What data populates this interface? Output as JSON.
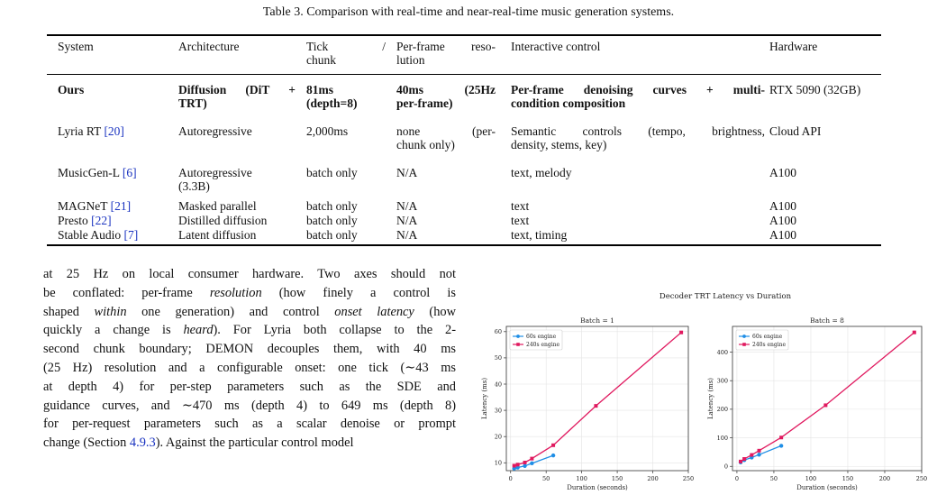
{
  "table": {
    "caption": "Table 3. Comparison with real-time and near-real-time music generation systems.",
    "headers": [
      [
        "System"
      ],
      [
        "Architecture"
      ],
      [
        "Tick           /",
        "chunk"
      ],
      [
        "Per-frame reso-",
        "lution"
      ],
      [
        "Interactive control"
      ],
      [
        "Hardware"
      ]
    ],
    "rows": [
      {
        "system": "Ours",
        "system_cite": "",
        "architecture": [
          "Diffusion (DiT +",
          "TRT)"
        ],
        "tick": [
          "81ms",
          "(depth=8)"
        ],
        "resolution": [
          "40ms     (25Hz",
          "per-frame)"
        ],
        "control": [
          "Per-frame denoising curves + multi-",
          "condition composition"
        ],
        "hardware": "RTX 5090 (32GB)"
      },
      {
        "system": "Lyria RT ",
        "system_cite": "[20]",
        "architecture": [
          "Autoregressive"
        ],
        "tick": [
          "2,000ms"
        ],
        "resolution": [
          "none        (per-",
          "chunk only)"
        ],
        "control": [
          "Semantic controls (tempo, brightness,",
          "density, stems, key)"
        ],
        "hardware": "Cloud API"
      },
      {
        "system": "MusicGen-L ",
        "system_cite": "[6]",
        "architecture": [
          "Autoregressive",
          "(3.3B)"
        ],
        "tick": [
          "batch only"
        ],
        "resolution": [
          "N/A"
        ],
        "control": [
          "text, melody"
        ],
        "hardware": "A100"
      },
      {
        "system": "MAGNeT ",
        "system_cite": "[21]",
        "architecture": [
          "Masked parallel"
        ],
        "tick": [
          "batch only"
        ],
        "resolution": [
          "N/A"
        ],
        "control": [
          "text"
        ],
        "hardware": "A100"
      },
      {
        "system": "Presto ",
        "system_cite": "[22]",
        "architecture": [
          "Distilled diffusion"
        ],
        "tick": [
          "batch only"
        ],
        "resolution": [
          "N/A"
        ],
        "control": [
          "text"
        ],
        "hardware": "A100"
      },
      {
        "system": "Stable Audio ",
        "system_cite": "[7]",
        "architecture": [
          "Latent diffusion"
        ],
        "tick": [
          "batch only"
        ],
        "resolution": [
          "N/A"
        ],
        "control": [
          "text, timing"
        ],
        "hardware": "A100"
      }
    ]
  },
  "body": {
    "lines": [
      [
        {
          "t": "at 25 Hz on local consumer hardware. Two axes should not"
        }
      ],
      [
        {
          "t": "be conflated: per-frame "
        },
        {
          "t": "resolution",
          "i": true
        },
        {
          "t": " (how finely a control is"
        }
      ],
      [
        {
          "t": "shaped "
        },
        {
          "t": "within",
          "i": true
        },
        {
          "t": " one generation) and control "
        },
        {
          "t": "onset latency",
          "i": true
        },
        {
          "t": " (how"
        }
      ],
      [
        {
          "t": "quickly a change is "
        },
        {
          "t": "heard",
          "i": true
        },
        {
          "t": "). For Lyria both collapse to the 2-"
        }
      ],
      [
        {
          "t": "second chunk boundary; DEMON decouples them, with 40 ms"
        }
      ],
      [
        {
          "t": "(25 Hz) resolution and a configurable onset: one tick (∼43 ms"
        }
      ],
      [
        {
          "t": "at depth 4) for per-step parameters such as the SDE and"
        }
      ],
      [
        {
          "t": "guidance curves, and ∼470 ms (depth 4) to 649 ms (depth 8)"
        }
      ],
      [
        {
          "t": "for per-request parameters such as a scalar denoise or prompt"
        }
      ],
      [
        {
          "t": "change (Section "
        },
        {
          "t": "4.9.3",
          "c": true
        },
        {
          "t": "). Against the particular control model"
        }
      ]
    ]
  },
  "figure": {
    "title": "Decoder TRT Latency vs Duration"
  },
  "chart_data": [
    {
      "type": "line",
      "title": "Batch = 1",
      "xlabel": "Duration (seconds)",
      "ylabel": "Latency (ms)",
      "xlim": [
        -6,
        250
      ],
      "ylim": [
        7,
        62
      ],
      "xticks": [
        0,
        50,
        100,
        150,
        200,
        250
      ],
      "yticks": [
        10,
        20,
        30,
        40,
        50,
        60
      ],
      "grid": true,
      "legend": "top-left",
      "series": [
        {
          "name": "60s engine",
          "color": "#1f8ee6",
          "marker": "circle",
          "x": [
            5,
            10,
            20,
            30,
            60
          ],
          "y": [
            7.8,
            8.2,
            8.8,
            9.8,
            12.8
          ]
        },
        {
          "name": "240s engine",
          "color": "#e0195f",
          "marker": "square",
          "x": [
            5,
            10,
            20,
            30,
            60,
            120,
            240
          ],
          "y": [
            8.9,
            9.3,
            10.1,
            11.6,
            16.7,
            31.7,
            59.7
          ]
        }
      ]
    },
    {
      "type": "line",
      "title": "Batch = 8",
      "xlabel": "Duration (seconds)",
      "ylabel": "Latency (ms)",
      "xlim": [
        -6,
        250
      ],
      "ylim": [
        -15,
        490
      ],
      "xticks": [
        0,
        50,
        100,
        150,
        200,
        250
      ],
      "yticks": [
        0,
        100,
        200,
        300,
        400
      ],
      "grid": true,
      "legend": "top-left",
      "series": [
        {
          "name": "60s engine",
          "color": "#1f8ee6",
          "marker": "circle",
          "x": [
            5,
            10,
            20,
            30,
            60
          ],
          "y": [
            14,
            22,
            31,
            41,
            72
          ]
        },
        {
          "name": "240s engine",
          "color": "#e0195f",
          "marker": "square",
          "x": [
            5,
            10,
            20,
            30,
            60,
            120,
            240
          ],
          "y": [
            17,
            26,
            40,
            55,
            101,
            214,
            469
          ]
        }
      ]
    }
  ]
}
